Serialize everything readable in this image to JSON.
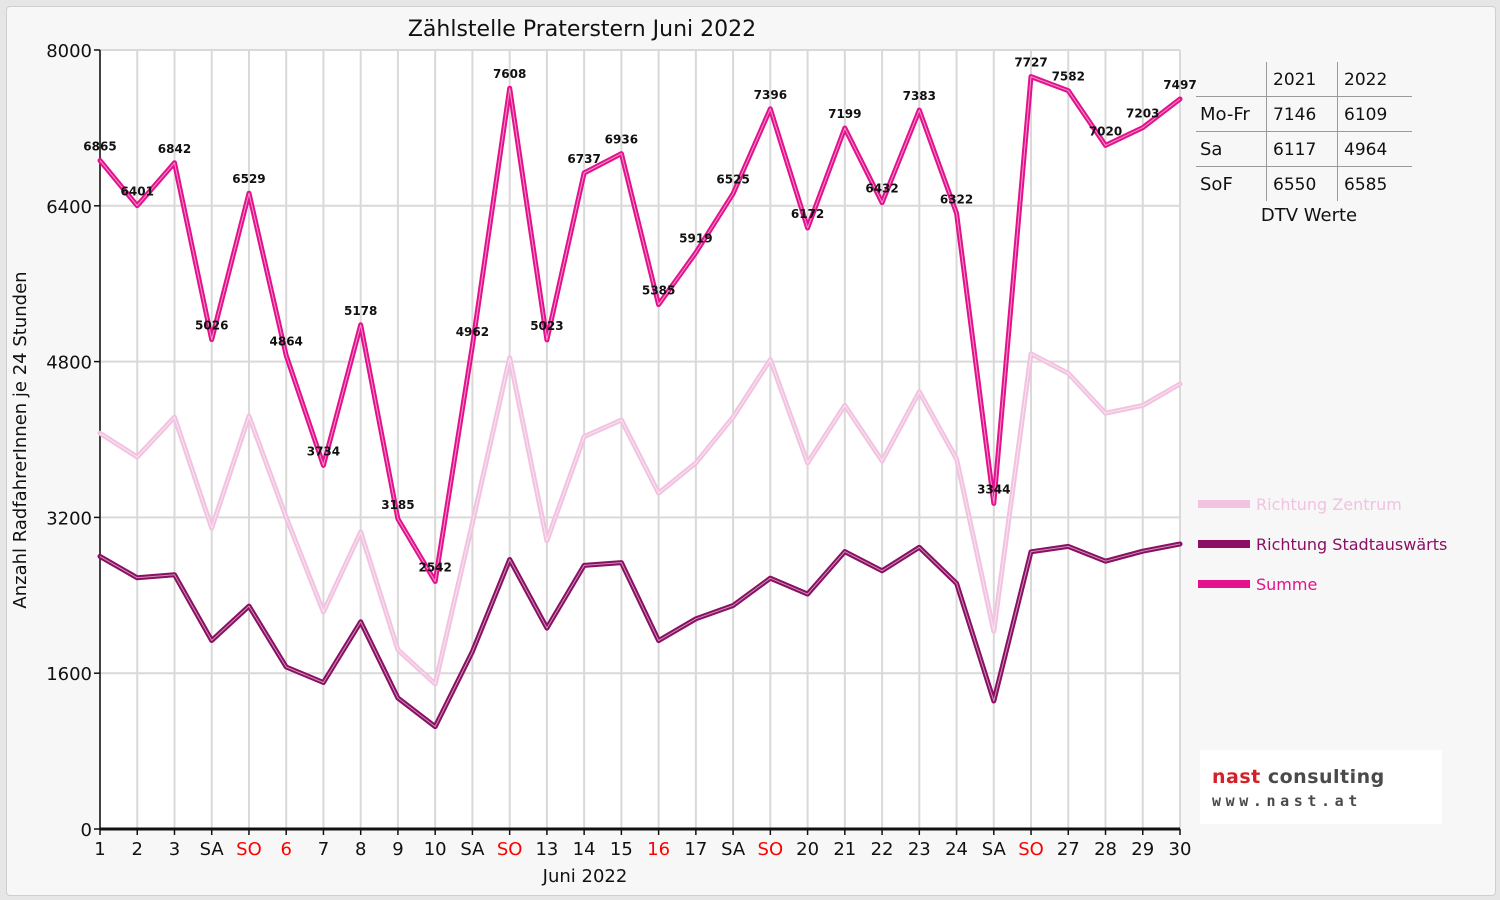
{
  "chart_data": {
    "type": "line",
    "title": "Zählstelle Praterstern Juni 2022",
    "xlabel": "Juni 2022",
    "ylabel": "Anzahl RadfahrerInnen je 24 Stunden",
    "ylim": [
      0,
      8000
    ],
    "yticks": [
      "0",
      "1600",
      "3200",
      "4800",
      "6400",
      "8000"
    ],
    "grid": true,
    "legend_position": "right",
    "categories": [
      "1",
      "2",
      "3",
      "SA",
      "SO",
      "6",
      "7",
      "8",
      "9",
      "10",
      "SA",
      "SO",
      "13",
      "14",
      "15",
      "16",
      "17",
      "SA",
      "SO",
      "20",
      "21",
      "22",
      "23",
      "24",
      "SA",
      "SO",
      "27",
      "28",
      "29",
      "30"
    ],
    "red_categories": [
      4,
      5,
      11,
      15,
      18,
      25
    ],
    "series": [
      {
        "name": "Richtung Zentrum",
        "color": "#f2c2e1",
        "values": [
          4065,
          3820,
          4230,
          3090,
          4240,
          3200,
          2230,
          3050,
          1840,
          1490,
          3140,
          4840,
          2960,
          4030,
          4200,
          3450,
          3760,
          4230,
          4820,
          3760,
          4350,
          3780,
          4490,
          3800,
          2030,
          4880,
          4680,
          4270,
          4350,
          4570
        ]
      },
      {
        "name": "Richtung Stadtauswärts",
        "color": "#8b0f62",
        "values": [
          2800,
          2580,
          2612,
          1936,
          2289,
          1664,
          1504,
          2128,
          1345,
          1052,
          1822,
          2768,
          2063,
          2707,
          2736,
          1935,
          2159,
          2295,
          2576,
          2412,
          2849,
          2652,
          2893,
          2522,
          1314,
          2847,
          2902,
          2750,
          2853,
          2927
        ]
      },
      {
        "name": "Summe",
        "color": "#e3128c",
        "values": [
          6865,
          6401,
          6842,
          5026,
          6529,
          4864,
          3734,
          5178,
          3185,
          2542,
          4962,
          7608,
          5023,
          6737,
          6936,
          5385,
          5919,
          6525,
          7396,
          6172,
          7199,
          6432,
          7383,
          6322,
          3344,
          7727,
          7582,
          7020,
          7203,
          7497
        ]
      }
    ],
    "data_labels": [
      "6865",
      "6401",
      "6842",
      "5026",
      "6529",
      "4864",
      "3734",
      "5178",
      "3185",
      "2542",
      "4962",
      "7608",
      "5023",
      "6737",
      "6936",
      "5385",
      "5919",
      "6525",
      "7396",
      "6172",
      "7199",
      "6432",
      "7383",
      "6322",
      "3344",
      "7727",
      "7582",
      "7020",
      "7203",
      "7497"
    ]
  },
  "dtv_table": {
    "header": [
      "",
      "2021",
      "2022"
    ],
    "rows": [
      [
        "Mo-Fr",
        "7146",
        "6109"
      ],
      [
        "Sa",
        "6117",
        "4964"
      ],
      [
        "SoF",
        "6550",
        "6585"
      ]
    ],
    "caption": "DTV Werte"
  },
  "logo": {
    "line1_a": "nast",
    "line1_b": " consulting",
    "line2": "www.nast.at"
  },
  "colors": {
    "red_label": "#ff0000",
    "grid": "#d9d9d9"
  }
}
